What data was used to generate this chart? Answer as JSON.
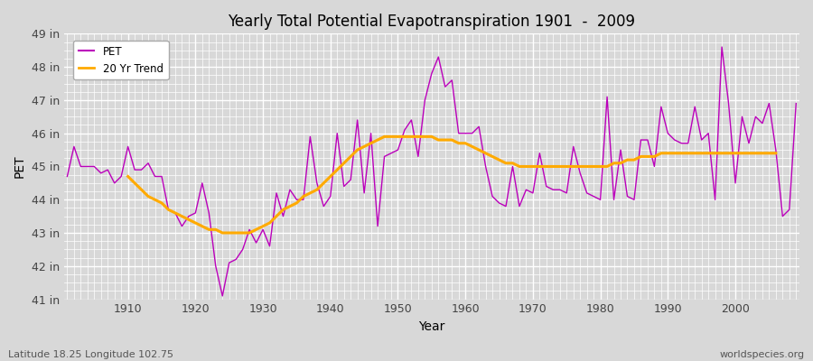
{
  "title": "Yearly Total Potential Evapotranspiration 1901  -  2009",
  "xlabel": "Year",
  "ylabel": "PET",
  "subtitle_left": "Latitude 18.25 Longitude 102.75",
  "subtitle_right": "worldspecies.org",
  "pet_color": "#bb00bb",
  "trend_color": "#ffaa00",
  "background_color": "#d8d8d8",
  "plot_bg_color": "#d8d8d8",
  "ylim": [
    41,
    49
  ],
  "yticks": [
    41,
    42,
    43,
    44,
    45,
    46,
    47,
    48,
    49
  ],
  "ytick_labels": [
    "41 in",
    "42 in",
    "43 in",
    "44 in",
    "45 in",
    "46 in",
    "47 in",
    "48 in",
    "49 in"
  ],
  "years": [
    1901,
    1902,
    1903,
    1904,
    1905,
    1906,
    1907,
    1908,
    1909,
    1910,
    1911,
    1912,
    1913,
    1914,
    1915,
    1916,
    1917,
    1918,
    1919,
    1920,
    1921,
    1922,
    1923,
    1924,
    1925,
    1926,
    1927,
    1928,
    1929,
    1930,
    1931,
    1932,
    1933,
    1934,
    1935,
    1936,
    1937,
    1938,
    1939,
    1940,
    1941,
    1942,
    1943,
    1944,
    1945,
    1946,
    1947,
    1948,
    1949,
    1950,
    1951,
    1952,
    1953,
    1954,
    1955,
    1956,
    1957,
    1958,
    1959,
    1960,
    1961,
    1962,
    1963,
    1964,
    1965,
    1966,
    1967,
    1968,
    1969,
    1970,
    1971,
    1972,
    1973,
    1974,
    1975,
    1976,
    1977,
    1978,
    1979,
    1980,
    1981,
    1982,
    1983,
    1984,
    1985,
    1986,
    1987,
    1988,
    1989,
    1990,
    1991,
    1992,
    1993,
    1994,
    1995,
    1996,
    1997,
    1998,
    1999,
    2000,
    2001,
    2002,
    2003,
    2004,
    2005,
    2006,
    2007,
    2008,
    2009
  ],
  "pet_values": [
    44.7,
    45.6,
    45.0,
    45.0,
    45.0,
    44.8,
    44.9,
    44.5,
    44.7,
    45.6,
    44.9,
    44.9,
    45.1,
    44.7,
    44.7,
    43.7,
    43.6,
    43.2,
    43.5,
    43.6,
    44.5,
    43.6,
    42.0,
    41.1,
    42.1,
    42.2,
    42.5,
    43.1,
    42.7,
    43.1,
    42.6,
    44.2,
    43.5,
    44.3,
    44.0,
    44.0,
    45.9,
    44.5,
    43.8,
    44.1,
    46.0,
    44.4,
    44.6,
    46.4,
    44.2,
    46.0,
    43.2,
    45.3,
    45.4,
    45.5,
    46.1,
    46.4,
    45.3,
    47.0,
    47.8,
    48.3,
    47.4,
    47.6,
    46.0,
    46.0,
    46.0,
    46.2,
    45.0,
    44.1,
    43.9,
    43.8,
    45.0,
    43.8,
    44.3,
    44.2,
    45.4,
    44.4,
    44.3,
    44.3,
    44.2,
    45.6,
    44.8,
    44.2,
    44.1,
    44.0,
    47.1,
    44.0,
    45.5,
    44.1,
    44.0,
    45.8,
    45.8,
    45.0,
    46.8,
    46.0,
    45.8,
    45.7,
    45.7,
    46.8,
    45.8,
    46.0,
    44.0,
    48.6,
    46.9,
    44.5,
    46.5,
    45.7,
    46.5,
    46.3,
    46.9,
    45.5,
    43.5,
    43.7,
    46.9
  ],
  "trend_years": [
    1910,
    1911,
    1912,
    1913,
    1914,
    1915,
    1916,
    1917,
    1918,
    1919,
    1920,
    1921,
    1922,
    1923,
    1924,
    1925,
    1926,
    1927,
    1928,
    1929,
    1930,
    1931,
    1932,
    1933,
    1934,
    1935,
    1936,
    1937,
    1938,
    1939,
    1940,
    1941,
    1942,
    1943,
    1944,
    1945,
    1946,
    1947,
    1948,
    1949,
    1950,
    1951,
    1952,
    1953,
    1954,
    1955,
    1956,
    1957,
    1958,
    1959,
    1960,
    1961,
    1962,
    1963,
    1964,
    1965,
    1966,
    1967,
    1968,
    1969,
    1970,
    1971,
    1972,
    1973,
    1974,
    1975,
    1976,
    1977,
    1978,
    1979,
    1980,
    1981,
    1982,
    1983,
    1984,
    1985,
    1986,
    1987,
    1988,
    1989,
    1990,
    1991,
    1992,
    1993,
    1994,
    1995,
    1996,
    1997,
    1998,
    1999,
    2000,
    2001,
    2002,
    2003,
    2004,
    2005,
    2006
  ],
  "trend_values": [
    44.7,
    44.5,
    44.3,
    44.1,
    44.0,
    43.9,
    43.7,
    43.6,
    43.5,
    43.4,
    43.3,
    43.2,
    43.1,
    43.1,
    43.0,
    43.0,
    43.0,
    43.0,
    43.0,
    43.1,
    43.2,
    43.3,
    43.5,
    43.7,
    43.8,
    43.9,
    44.1,
    44.2,
    44.3,
    44.5,
    44.7,
    44.9,
    45.1,
    45.3,
    45.5,
    45.6,
    45.7,
    45.8,
    45.9,
    45.9,
    45.9,
    45.9,
    45.9,
    45.9,
    45.9,
    45.9,
    45.8,
    45.8,
    45.8,
    45.7,
    45.7,
    45.6,
    45.5,
    45.4,
    45.3,
    45.2,
    45.1,
    45.1,
    45.0,
    45.0,
    45.0,
    45.0,
    45.0,
    45.0,
    45.0,
    45.0,
    45.0,
    45.0,
    45.0,
    45.0,
    45.0,
    45.0,
    45.1,
    45.1,
    45.2,
    45.2,
    45.3,
    45.3,
    45.3,
    45.4,
    45.4,
    45.4,
    45.4,
    45.4,
    45.4,
    45.4,
    45.4,
    45.4,
    45.4,
    45.4,
    45.4,
    45.4,
    45.4,
    45.4,
    45.4,
    45.4,
    45.4
  ]
}
